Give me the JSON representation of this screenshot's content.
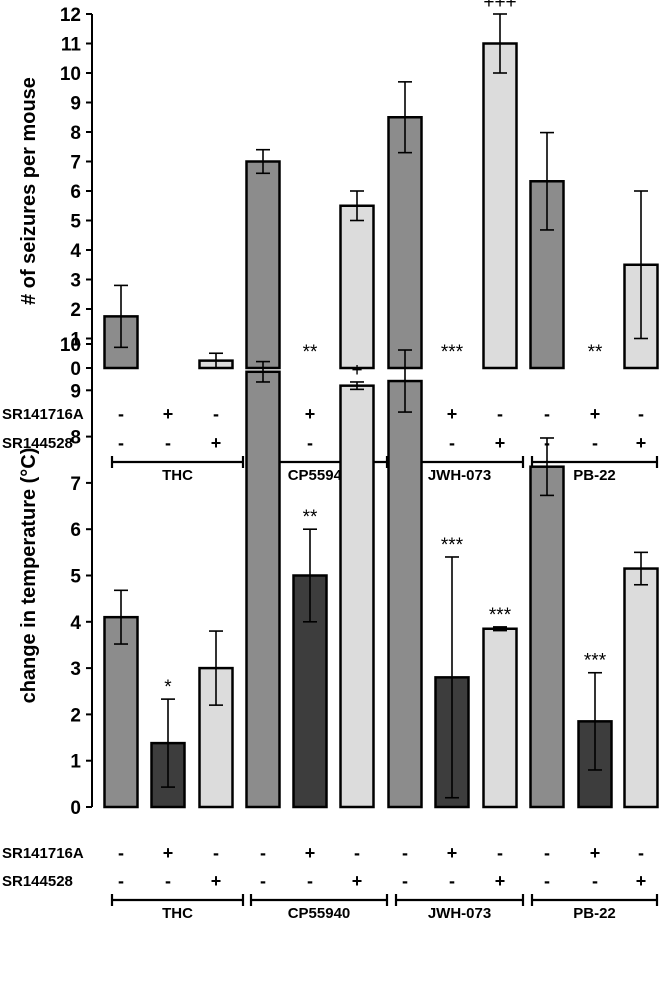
{
  "chart_data": [
    {
      "type": "bar",
      "ylabel": "# of seizures per mouse",
      "ylim": [
        0,
        12
      ],
      "yticks": [
        "0",
        "1",
        "2",
        "3",
        "4",
        "5",
        "6",
        "7",
        "8",
        "9",
        "10",
        "11",
        "12"
      ],
      "grid": false,
      "legend": "none",
      "categories": [
        "THC",
        "CP55940",
        "JWH-073",
        "PB-22"
      ],
      "conditions": [
        {
          "SR141716A": "-",
          "SR144528": "-",
          "color": "#8c8c8c"
        },
        {
          "SR141716A": "+",
          "SR144528": "-",
          "color": "#3d3d3d"
        },
        {
          "SR141716A": "-",
          "SR144528": "+",
          "color": "#dcdcdc"
        }
      ],
      "series": [
        {
          "values": [
            1.75,
            7.0,
            8.5,
            6.33
          ],
          "errors": [
            1.05,
            0.4,
            1.2,
            1.65
          ]
        },
        {
          "values": [
            0,
            0,
            0,
            0
          ],
          "errors": [
            0,
            0,
            0,
            0
          ]
        },
        {
          "values": [
            0.25,
            5.5,
            11.0,
            3.5
          ],
          "errors": [
            0.25,
            0.5,
            1.0,
            2.5
          ]
        }
      ],
      "annotations": [
        {
          "group": 1,
          "cond": 1,
          "text": "**"
        },
        {
          "group": 2,
          "cond": 1,
          "text": "***"
        },
        {
          "group": 3,
          "cond": 1,
          "text": "**"
        },
        {
          "group": 2,
          "cond": 2,
          "text": "+++"
        }
      ]
    },
    {
      "type": "bar",
      "ylabel": "change in temperature (°C)",
      "ylim": [
        0,
        10
      ],
      "yticks": [
        "0",
        "1",
        "2",
        "3",
        "4",
        "5",
        "6",
        "7",
        "8",
        "9",
        "10"
      ],
      "grid": false,
      "legend": "none",
      "categories": [
        "THC",
        "CP55940",
        "JWH-073",
        "PB-22"
      ],
      "conditions": [
        {
          "SR141716A": "-",
          "SR144528": "-",
          "color": "#8c8c8c"
        },
        {
          "SR141716A": "+",
          "SR144528": "-",
          "color": "#3d3d3d"
        },
        {
          "SR141716A": "-",
          "SR144528": "+",
          "color": "#dcdcdc"
        }
      ],
      "series": [
        {
          "values": [
            4.1,
            9.4,
            9.2,
            7.35
          ],
          "errors": [
            0.58,
            0.22,
            0.67,
            0.62
          ]
        },
        {
          "values": [
            1.38,
            5.0,
            2.8,
            1.85
          ],
          "errors": [
            0.95,
            1.0,
            2.6,
            1.05
          ]
        },
        {
          "values": [
            3.0,
            9.1,
            3.85,
            5.15
          ],
          "errors": [
            0.8,
            0.08,
            0.04,
            0.35
          ]
        }
      ],
      "annotations": [
        {
          "group": 0,
          "cond": 1,
          "text": "*"
        },
        {
          "group": 1,
          "cond": 1,
          "text": "**"
        },
        {
          "group": 2,
          "cond": 1,
          "text": "***"
        },
        {
          "group": 3,
          "cond": 1,
          "text": "***"
        },
        {
          "group": 2,
          "cond": 2,
          "text": "***"
        },
        {
          "group": 1,
          "cond": 2,
          "text": "+"
        }
      ]
    }
  ],
  "row_labels": [
    "SR141716A",
    "SR144528"
  ]
}
